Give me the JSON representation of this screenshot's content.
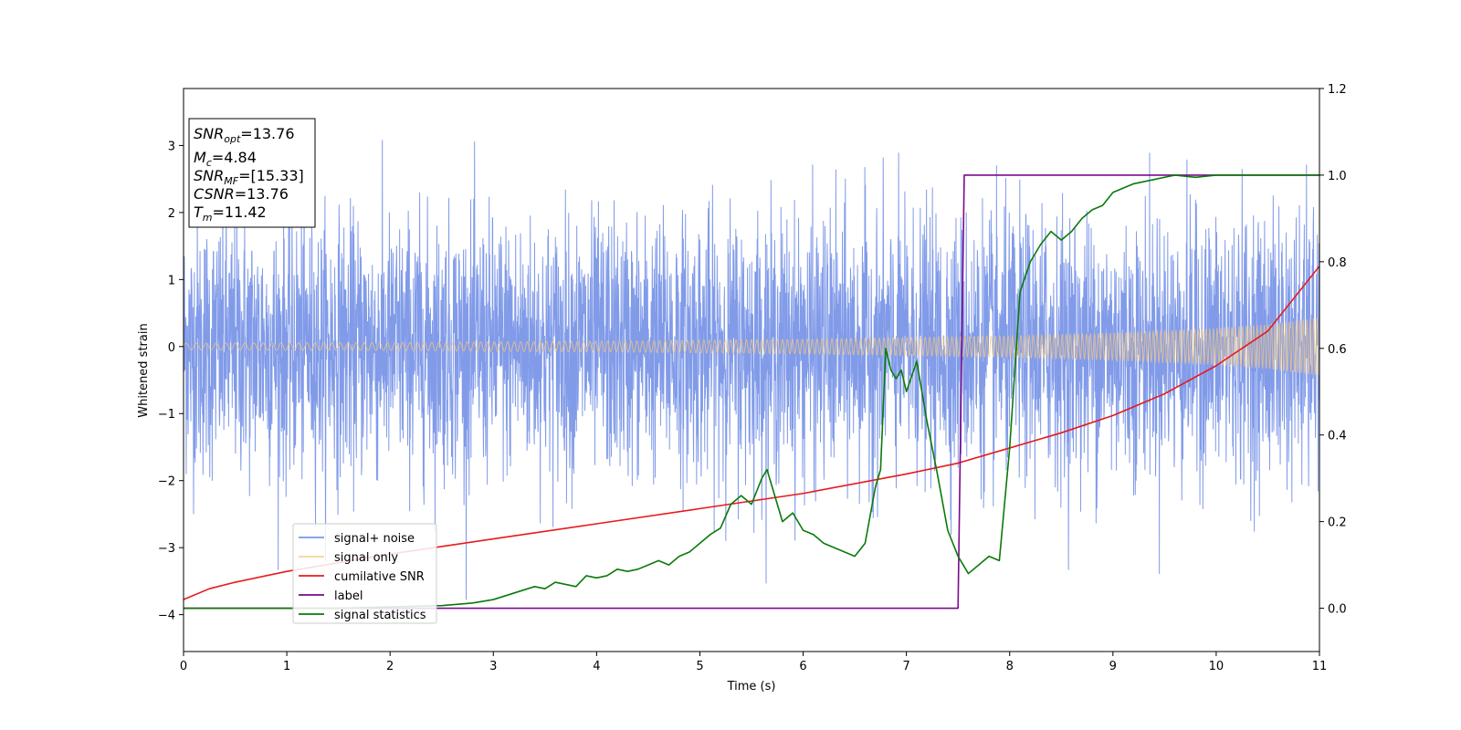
{
  "chart_data": {
    "type": "line",
    "title": "",
    "xlabel": "Time (s)",
    "ylabel": "Whitened strain",
    "xlim": [
      0,
      11
    ],
    "ylim_left": [
      -4.55,
      3.85
    ],
    "ylim_right": [
      -0.1,
      1.2
    ],
    "x_ticks": [
      "0",
      "1",
      "2",
      "3",
      "4",
      "5",
      "6",
      "7",
      "8",
      "9",
      "10",
      "11"
    ],
    "y_left_ticks": [
      "-4",
      "-3",
      "-2",
      "-1",
      "0",
      "1",
      "2",
      "3"
    ],
    "y_right_ticks": [
      "0.0",
      "0.2",
      "0.4",
      "0.6",
      "0.8",
      "1.0",
      "1.2"
    ],
    "grid": false,
    "legend_position": "lower-left",
    "stats_box": {
      "snr_opt": {
        "base": "SNR",
        "sub": "opt",
        "value": "=13.76"
      },
      "mc": {
        "base": "M",
        "sub": "c",
        "value": "=4.84"
      },
      "snr_mf": {
        "base": "SNR",
        "sub": "MF",
        "value": "=[15.33]"
      },
      "csnr": {
        "base": "CSNR",
        "sub": "",
        "value": "=13.76"
      },
      "tm": {
        "base": "T",
        "sub": "m",
        "value": "=11.42"
      }
    },
    "series": [
      {
        "name": "signal+ noise",
        "axis": "left",
        "color": "#7a96e8",
        "description_values": {
          "noise_std": 0.95,
          "mean": 0.0,
          "max_peak": 3.5,
          "min_peak": -4.15
        }
      },
      {
        "name": "signal only",
        "axis": "left",
        "color": "#f5c77e",
        "envelope_x": [
          0,
          2,
          4,
          6,
          8,
          9,
          10,
          10.5,
          11
        ],
        "envelope_y": [
          0.05,
          0.06,
          0.08,
          0.11,
          0.16,
          0.2,
          0.27,
          0.33,
          0.43
        ]
      },
      {
        "name": "cumilative SNR",
        "axis": "right",
        "color": "#e8191b",
        "x": [
          0,
          0.25,
          0.5,
          1,
          2,
          3,
          4,
          5,
          6,
          7,
          7.5,
          8,
          8.5,
          9,
          9.5,
          10,
          10.5,
          11
        ],
        "y": [
          0.02,
          0.045,
          0.06,
          0.085,
          0.125,
          0.16,
          0.195,
          0.23,
          0.265,
          0.31,
          0.335,
          0.37,
          0.405,
          0.445,
          0.495,
          0.56,
          0.64,
          0.79
        ]
      },
      {
        "name": "label",
        "axis": "right",
        "color": "#7a0a8c",
        "x": [
          0,
          7.5,
          7.56,
          11
        ],
        "y": [
          0.0,
          0.0,
          1.0,
          1.0
        ]
      },
      {
        "name": "signal statistics",
        "axis": "right",
        "color": "#0a7a0a",
        "x": [
          0,
          0.5,
          1,
          1.5,
          2,
          2.5,
          2.8,
          3.0,
          3.2,
          3.4,
          3.5,
          3.6,
          3.7,
          3.8,
          3.9,
          4.0,
          4.1,
          4.2,
          4.3,
          4.4,
          4.5,
          4.6,
          4.7,
          4.8,
          4.9,
          5.0,
          5.1,
          5.2,
          5.3,
          5.4,
          5.5,
          5.6,
          5.65,
          5.7,
          5.8,
          5.9,
          6.0,
          6.1,
          6.2,
          6.3,
          6.4,
          6.5,
          6.6,
          6.7,
          6.75,
          6.8,
          6.85,
          6.9,
          6.95,
          7.0,
          7.1,
          7.2,
          7.3,
          7.4,
          7.5,
          7.6,
          7.7,
          7.8,
          7.9,
          8.0,
          8.1,
          8.2,
          8.3,
          8.4,
          8.5,
          8.6,
          8.7,
          8.8,
          8.9,
          9.0,
          9.2,
          9.4,
          9.6,
          9.8,
          10.0,
          10.2,
          10.4,
          10.6,
          11.0
        ],
        "y": [
          0.0,
          0.0,
          0.0,
          0.0,
          0.003,
          0.006,
          0.012,
          0.02,
          0.035,
          0.05,
          0.045,
          0.06,
          0.055,
          0.05,
          0.075,
          0.07,
          0.075,
          0.09,
          0.085,
          0.09,
          0.1,
          0.11,
          0.1,
          0.12,
          0.13,
          0.15,
          0.17,
          0.185,
          0.24,
          0.26,
          0.24,
          0.3,
          0.32,
          0.28,
          0.2,
          0.22,
          0.18,
          0.17,
          0.15,
          0.14,
          0.13,
          0.12,
          0.15,
          0.28,
          0.32,
          0.6,
          0.55,
          0.53,
          0.55,
          0.5,
          0.57,
          0.43,
          0.31,
          0.18,
          0.12,
          0.08,
          0.1,
          0.12,
          0.11,
          0.37,
          0.73,
          0.8,
          0.84,
          0.87,
          0.85,
          0.87,
          0.9,
          0.92,
          0.93,
          0.96,
          0.98,
          0.99,
          1.0,
          0.995,
          1.0,
          1.0,
          1.0,
          1.0,
          1.0
        ]
      }
    ]
  }
}
